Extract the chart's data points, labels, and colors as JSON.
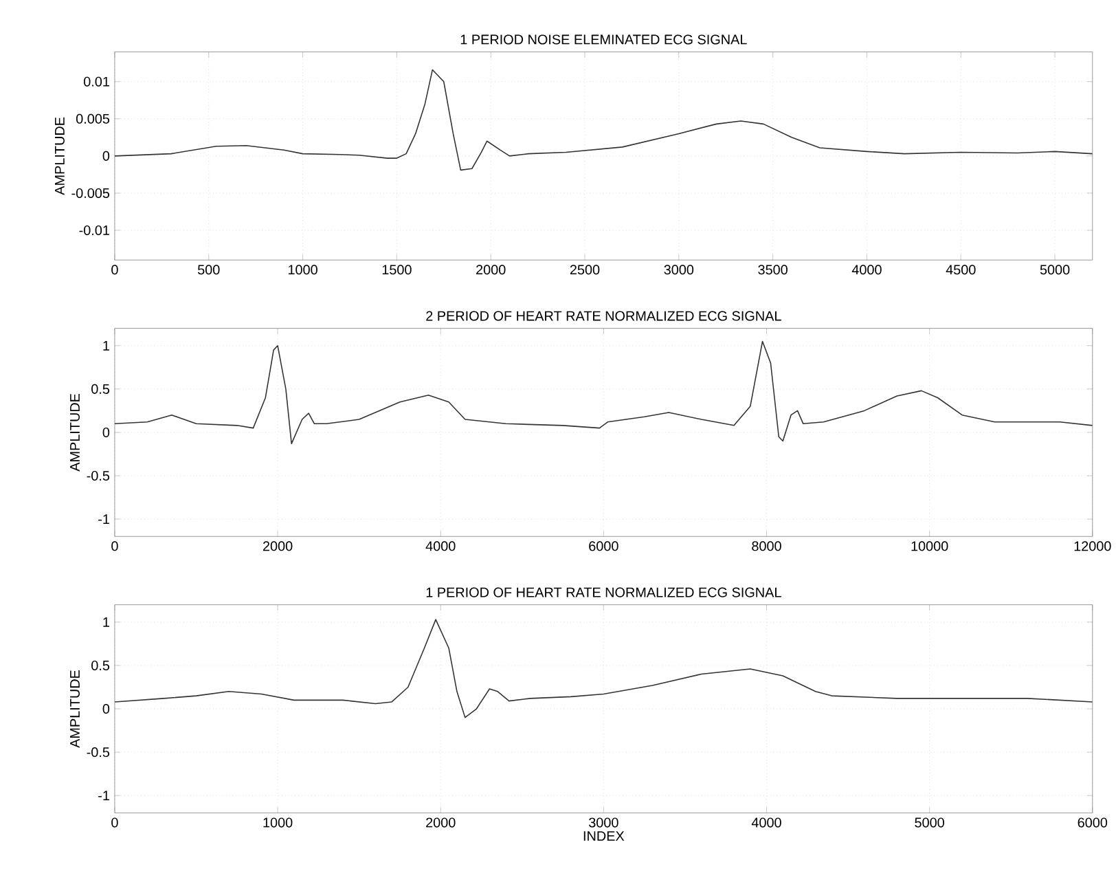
{
  "chart_data": [
    {
      "type": "line",
      "title": "1 PERIOD NOISE ELEMINATED ECG SIGNAL",
      "ylabel": "AMPLITUDE",
      "color": "#333333",
      "grid": true,
      "xlim": [
        0,
        5200
      ],
      "ylim": [
        -0.014,
        0.014
      ],
      "xticks": [
        0,
        500,
        1000,
        1500,
        2000,
        2500,
        3000,
        3500,
        4000,
        4500,
        5000
      ],
      "yticks": [
        -0.01,
        -0.005,
        0,
        0.005,
        0.01
      ],
      "x": [
        0,
        300,
        540,
        700,
        900,
        1000,
        1200,
        1300,
        1450,
        1500,
        1550,
        1600,
        1650,
        1690,
        1750,
        1800,
        1840,
        1900,
        1950,
        1980,
        2050,
        2100,
        2200,
        2400,
        2700,
        3000,
        3200,
        3330,
        3450,
        3600,
        3750,
        4000,
        4200,
        4500,
        4800,
        5000,
        5200
      ],
      "values": [
        0,
        0.0003,
        0.0013,
        0.0014,
        0.0008,
        0.0003,
        0.0002,
        0.0001,
        -0.0003,
        -0.0003,
        0.0003,
        0.003,
        0.007,
        0.0116,
        0.01,
        0.003,
        -0.0019,
        -0.0017,
        0.0005,
        0.002,
        0.0008,
        0,
        0.0003,
        0.0005,
        0.0012,
        0.003,
        0.0043,
        0.0047,
        0.0043,
        0.0025,
        0.0011,
        0.0006,
        0.0003,
        0.0005,
        0.0004,
        0.0006,
        0.0003
      ]
    },
    {
      "type": "line",
      "title": "2 PERIOD OF HEART RATE NORMALIZED ECG SIGNAL",
      "ylabel": "AMPLITUDE",
      "color": "#333333",
      "grid": true,
      "xlim": [
        0,
        12000
      ],
      "ylim": [
        -1.2,
        1.2
      ],
      "xticks": [
        0,
        2000,
        4000,
        6000,
        8000,
        10000,
        12000
      ],
      "yticks": [
        -1,
        -0.5,
        0,
        0.5,
        1
      ],
      "x": [
        0,
        400,
        700,
        1000,
        1500,
        1700,
        1850,
        1950,
        2000,
        2100,
        2170,
        2300,
        2380,
        2450,
        2600,
        3000,
        3500,
        3850,
        4100,
        4300,
        4800,
        5500,
        5950,
        6050,
        6500,
        6800,
        7200,
        7600,
        7800,
        7950,
        8050,
        8150,
        8200,
        8300,
        8380,
        8450,
        8700,
        9200,
        9600,
        9900,
        10100,
        10400,
        10800,
        11200,
        11600,
        12000
      ],
      "values": [
        0.1,
        0.12,
        0.2,
        0.1,
        0.08,
        0.05,
        0.4,
        0.95,
        1.0,
        0.5,
        -0.13,
        0.15,
        0.22,
        0.1,
        0.1,
        0.15,
        0.35,
        0.43,
        0.35,
        0.15,
        0.1,
        0.08,
        0.05,
        0.12,
        0.18,
        0.23,
        0.15,
        0.08,
        0.3,
        1.05,
        0.8,
        -0.05,
        -0.1,
        0.2,
        0.25,
        0.1,
        0.12,
        0.25,
        0.42,
        0.48,
        0.4,
        0.2,
        0.12,
        0.12,
        0.12,
        0.08
      ]
    },
    {
      "type": "line",
      "title": "1 PERIOD OF HEART RATE NORMALIZED ECG SIGNAL",
      "xlabel": "INDEX",
      "ylabel": "AMPLITUDE",
      "color": "#333333",
      "grid": true,
      "xlim": [
        0,
        6000
      ],
      "ylim": [
        -1.2,
        1.2
      ],
      "xticks": [
        0,
        1000,
        2000,
        3000,
        4000,
        5000,
        6000
      ],
      "yticks": [
        -1,
        -0.5,
        0,
        0.5,
        1
      ],
      "x": [
        0,
        300,
        500,
        700,
        900,
        1100,
        1400,
        1600,
        1700,
        1800,
        1900,
        1970,
        2050,
        2100,
        2150,
        2220,
        2300,
        2350,
        2420,
        2550,
        2800,
        3000,
        3300,
        3600,
        3900,
        4100,
        4300,
        4400,
        4800,
        5200,
        5600,
        6000
      ],
      "values": [
        0.08,
        0.12,
        0.15,
        0.2,
        0.17,
        0.1,
        0.1,
        0.06,
        0.08,
        0.25,
        0.7,
        1.03,
        0.7,
        0.2,
        -0.1,
        0.0,
        0.23,
        0.2,
        0.09,
        0.12,
        0.14,
        0.17,
        0.27,
        0.4,
        0.46,
        0.38,
        0.2,
        0.15,
        0.12,
        0.12,
        0.12,
        0.08
      ]
    }
  ]
}
